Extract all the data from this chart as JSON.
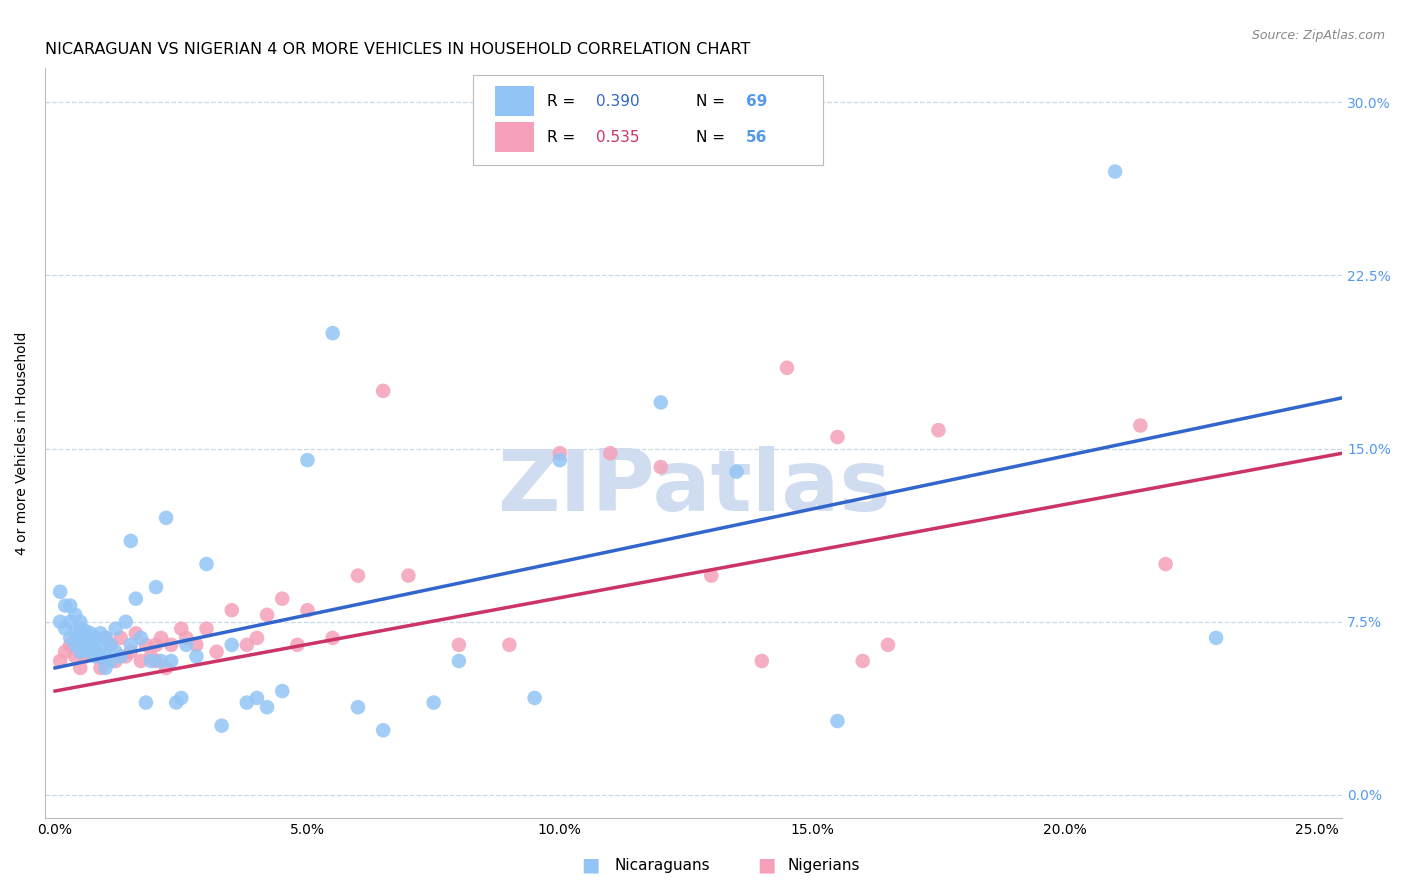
{
  "title": "NICARAGUAN VS NIGERIAN 4 OR MORE VEHICLES IN HOUSEHOLD CORRELATION CHART",
  "source": "Source: ZipAtlas.com",
  "ylabel": "4 or more Vehicles in Household",
  "xlabel_ticks": [
    "0.0%",
    "5.0%",
    "10.0%",
    "15.0%",
    "20.0%",
    "25.0%"
  ],
  "xlabel_vals": [
    0.0,
    0.05,
    0.1,
    0.15,
    0.2,
    0.25
  ],
  "ylabel_ticks": [
    "0.0%",
    "7.5%",
    "15.0%",
    "22.5%",
    "30.0%"
  ],
  "ylabel_vals": [
    0.0,
    0.075,
    0.15,
    0.225,
    0.3
  ],
  "xlim": [
    -0.002,
    0.255
  ],
  "ylim": [
    -0.01,
    0.315
  ],
  "nicaraguan_R": "0.390",
  "nicaraguan_N": "69",
  "nigerian_R": "0.535",
  "nigerian_N": "56",
  "nicaraguan_color": "#92C5F5",
  "nigerian_color": "#F5A0B8",
  "nicaraguan_line_color": "#3366CC",
  "nigerian_line_color": "#CC3366",
  "tick_color": "#5599EE",
  "watermark_color": "#D0DCF0",
  "background_color": "#FFFFFF",
  "grid_color": "#C8D8E8",
  "title_fontsize": 11.5,
  "axis_label_fontsize": 10,
  "tick_fontsize": 10,
  "nic_x": [
    0.001,
    0.001,
    0.002,
    0.002,
    0.003,
    0.003,
    0.003,
    0.004,
    0.004,
    0.004,
    0.005,
    0.005,
    0.005,
    0.005,
    0.006,
    0.006,
    0.006,
    0.007,
    0.007,
    0.007,
    0.008,
    0.008,
    0.008,
    0.009,
    0.009,
    0.009,
    0.01,
    0.01,
    0.01,
    0.011,
    0.011,
    0.012,
    0.012,
    0.013,
    0.014,
    0.015,
    0.015,
    0.016,
    0.017,
    0.018,
    0.019,
    0.02,
    0.021,
    0.022,
    0.023,
    0.024,
    0.025,
    0.026,
    0.028,
    0.03,
    0.033,
    0.035,
    0.038,
    0.04,
    0.042,
    0.045,
    0.05,
    0.055,
    0.06,
    0.065,
    0.075,
    0.08,
    0.095,
    0.1,
    0.12,
    0.135,
    0.155,
    0.21,
    0.23
  ],
  "nic_y": [
    0.075,
    0.088,
    0.072,
    0.082,
    0.068,
    0.075,
    0.082,
    0.07,
    0.065,
    0.078,
    0.072,
    0.068,
    0.075,
    0.062,
    0.068,
    0.063,
    0.071,
    0.065,
    0.07,
    0.062,
    0.068,
    0.063,
    0.06,
    0.07,
    0.064,
    0.06,
    0.06,
    0.068,
    0.055,
    0.065,
    0.058,
    0.072,
    0.062,
    0.06,
    0.075,
    0.11,
    0.065,
    0.085,
    0.068,
    0.04,
    0.058,
    0.09,
    0.058,
    0.12,
    0.058,
    0.04,
    0.042,
    0.065,
    0.06,
    0.1,
    0.03,
    0.065,
    0.04,
    0.042,
    0.038,
    0.045,
    0.145,
    0.2,
    0.038,
    0.028,
    0.04,
    0.058,
    0.042,
    0.145,
    0.17,
    0.14,
    0.032,
    0.27,
    0.068
  ],
  "nig_x": [
    0.001,
    0.002,
    0.003,
    0.004,
    0.005,
    0.005,
    0.006,
    0.007,
    0.008,
    0.009,
    0.01,
    0.01,
    0.011,
    0.012,
    0.013,
    0.014,
    0.015,
    0.016,
    0.017,
    0.018,
    0.019,
    0.02,
    0.02,
    0.021,
    0.022,
    0.023,
    0.025,
    0.026,
    0.028,
    0.03,
    0.032,
    0.035,
    0.038,
    0.04,
    0.042,
    0.045,
    0.048,
    0.05,
    0.055,
    0.06,
    0.065,
    0.07,
    0.08,
    0.09,
    0.1,
    0.11,
    0.12,
    0.13,
    0.14,
    0.145,
    0.155,
    0.16,
    0.165,
    0.175,
    0.215,
    0.22
  ],
  "nig_y": [
    0.058,
    0.062,
    0.065,
    0.06,
    0.062,
    0.055,
    0.06,
    0.065,
    0.062,
    0.055,
    0.068,
    0.058,
    0.065,
    0.058,
    0.068,
    0.06,
    0.062,
    0.07,
    0.058,
    0.065,
    0.06,
    0.065,
    0.058,
    0.068,
    0.055,
    0.065,
    0.072,
    0.068,
    0.065,
    0.072,
    0.062,
    0.08,
    0.065,
    0.068,
    0.078,
    0.085,
    0.065,
    0.08,
    0.068,
    0.095,
    0.175,
    0.095,
    0.065,
    0.065,
    0.148,
    0.148,
    0.142,
    0.095,
    0.058,
    0.185,
    0.155,
    0.058,
    0.065,
    0.158,
    0.16,
    0.1
  ],
  "nic_line_start_y": 0.055,
  "nic_line_end_y": 0.172,
  "nig_line_start_y": 0.045,
  "nig_line_end_y": 0.148
}
